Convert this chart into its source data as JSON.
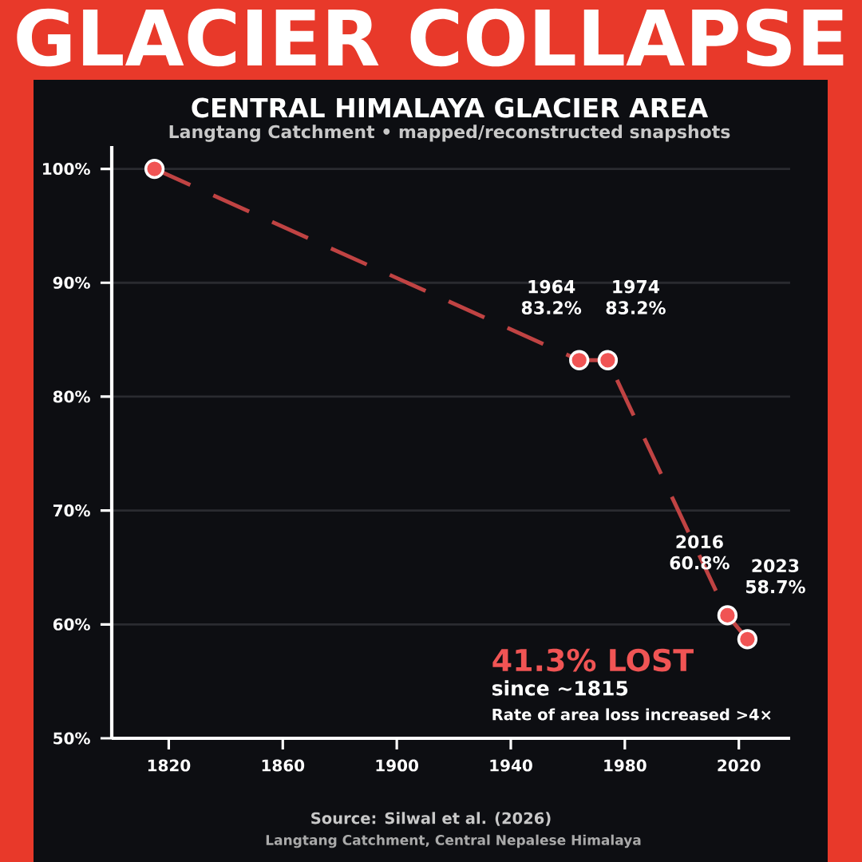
{
  "chart_data": {
    "type": "line",
    "title": "GLACIER COLLAPSE",
    "subtitle": "CENTRAL HIMALAYA GLACIER AREA",
    "x": [
      1815,
      1964,
      1974,
      2016,
      2023
    ],
    "series": [
      {
        "color": "#f05454",
        "values": [
          100,
          83.2,
          83.2,
          60.8,
          58.7
        ]
      }
    ],
    "xlim": [
      1800,
      2038
    ],
    "xticks": [
      1820,
      1860,
      1900,
      1940,
      1980,
      2020
    ],
    "ylim": [
      50,
      102
    ],
    "yticks": [
      {
        "value": 50,
        "label": "50%"
      },
      {
        "value": 60,
        "label": "60%"
      },
      {
        "value": 70,
        "label": "70%"
      },
      {
        "value": 80,
        "label": "80%"
      },
      {
        "value": 90,
        "label": "90%"
      },
      {
        "value": 100,
        "label": "100%"
      }
    ],
    "grid": "y",
    "marker": "circle",
    "line_style": "dashed",
    "annotations": [
      {
        "text": "1964 83.2%",
        "x": 1964,
        "y": 83.2
      },
      {
        "text": "1974 83.2%",
        "x": 1974,
        "y": 83.2
      },
      {
        "text": "2016 60.8%",
        "x": 2016,
        "y": 60.8
      },
      {
        "text": "2023 58.7%",
        "x": 2023,
        "y": 58.7
      },
      "Langtang Catchment • mapped/reconstructed snapshots",
      "41.3% LOST",
      "since ~1815",
      "Rate of area loss increased >4×",
      "Source: Silwal et al. (2026)",
      "Langtang Catchment, Central Nepalese Himalaya"
    ]
  }
}
